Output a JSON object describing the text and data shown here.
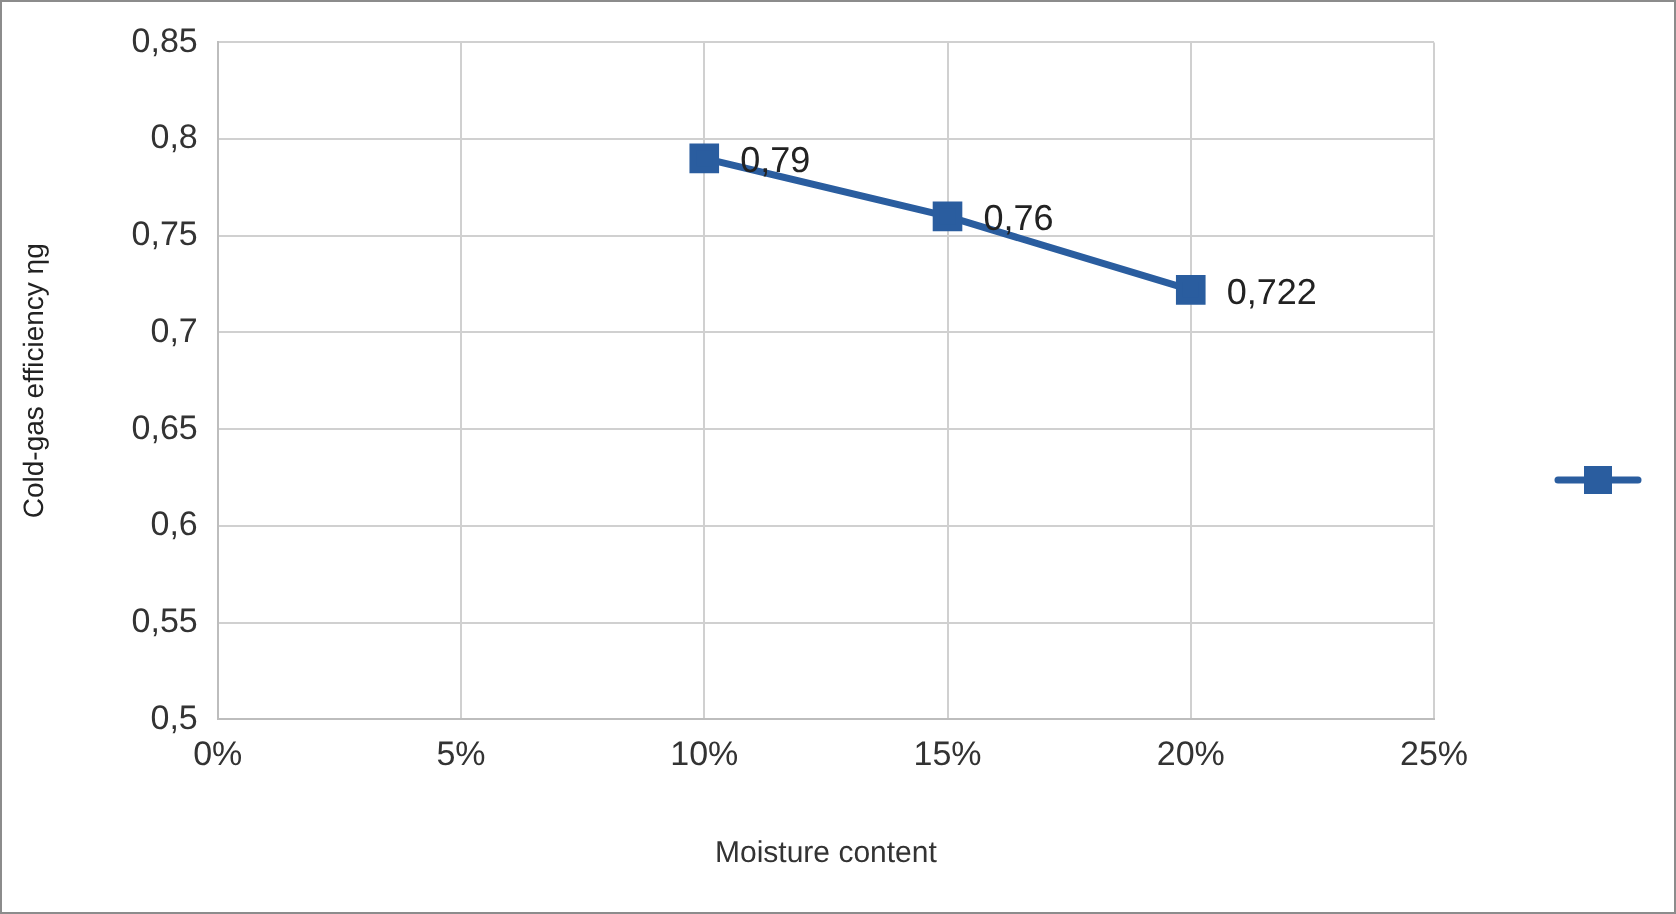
{
  "chart_data": {
    "type": "line",
    "xlabel": "Moisture content",
    "ylabel": "Cold-gas efficiency ηg",
    "x": [
      10,
      15,
      20
    ],
    "series": [
      {
        "color": "#2a5d9f",
        "values": [
          0.79,
          0.76,
          0.722
        ],
        "value_labels": [
          "0,79",
          "0,76",
          "0,722"
        ]
      }
    ],
    "xlim": [
      0,
      25
    ],
    "xticks": [
      {
        "value": 0,
        "label": "0%"
      },
      {
        "value": 5,
        "label": "5%"
      },
      {
        "value": 10,
        "label": "10%"
      },
      {
        "value": 15,
        "label": "15%"
      },
      {
        "value": 20,
        "label": "20%"
      },
      {
        "value": 25,
        "label": "25%"
      }
    ],
    "ylim": [
      0.5,
      0.85
    ],
    "yticks": [
      {
        "value": 0.5,
        "label": "0,5"
      },
      {
        "value": 0.55,
        "label": "0,55"
      },
      {
        "value": 0.6,
        "label": "0,6"
      },
      {
        "value": 0.65,
        "label": "0,65"
      },
      {
        "value": 0.7,
        "label": "0,7"
      },
      {
        "value": 0.75,
        "label": "0,75"
      },
      {
        "value": 0.8,
        "label": "0,8"
      },
      {
        "value": 0.85,
        "label": "0,85"
      }
    ],
    "grid": true,
    "marker": "square",
    "line_style": "solid"
  }
}
